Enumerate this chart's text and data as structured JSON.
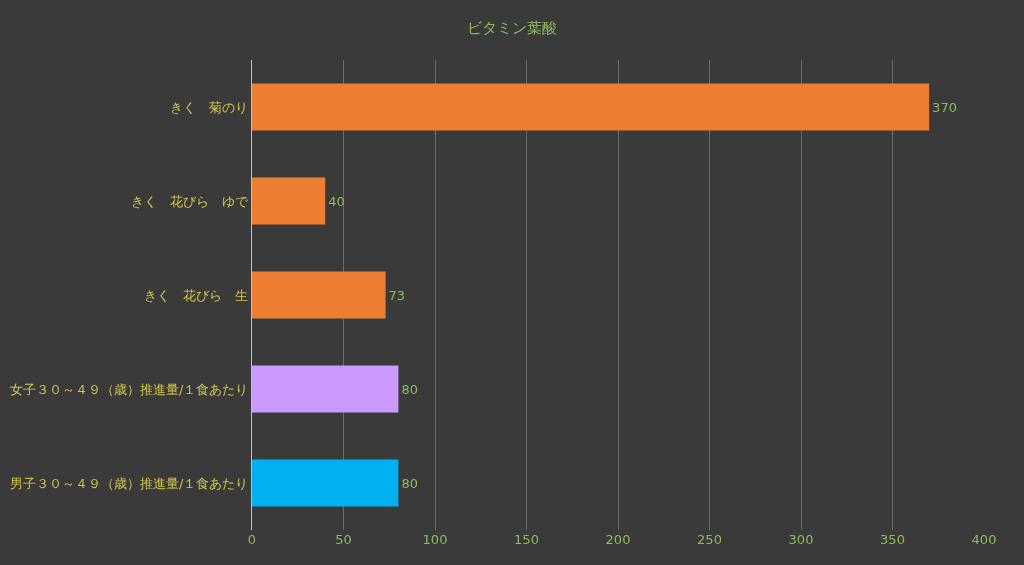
{
  "chart_data": {
    "type": "bar",
    "title": "ビタミン葉酸",
    "orientation": "horizontal",
    "categories": [
      "きく　菊のり",
      "きく　花びら　ゆで",
      "きく　花びら　生",
      "女子３０～４９（歳）推進量/１食あたり",
      "男子３０～４９（歳）推進量/１食あたり"
    ],
    "values": [
      370,
      40,
      73,
      80,
      80
    ],
    "colors": [
      "#ed7d31",
      "#ed7d31",
      "#ed7d31",
      "#cc99ff",
      "#00b0f0"
    ],
    "xlim": [
      0,
      400
    ],
    "xticks": [
      0,
      50,
      100,
      150,
      200,
      250,
      300,
      350,
      400
    ],
    "grid": "x",
    "data_labels": true,
    "legend": false
  }
}
